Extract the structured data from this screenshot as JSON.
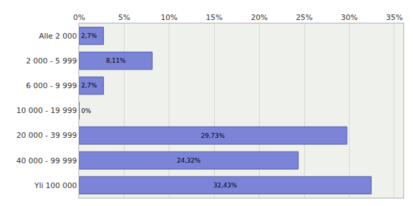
{
  "chart_data": {
    "type": "bar",
    "orientation": "horizontal",
    "categories": [
      "Alle 2 000",
      "2 000 - 5 999",
      "6 000 - 9 999",
      "10 000 - 19 999",
      "20 000 - 39 999",
      "40 000 - 99 999",
      "Yli 100 000"
    ],
    "values": [
      2.7,
      8.11,
      2.7,
      0,
      29.73,
      24.32,
      32.43
    ],
    "value_labels": [
      "2,7%",
      "8,11%",
      "2,7%",
      "0%",
      "29,73%",
      "24,32%",
      "32,43%"
    ],
    "data_labels": true,
    "color": "#7c84d8",
    "xlim": [
      0,
      36
    ],
    "xticks": [
      {
        "value": 0,
        "label": "0%"
      },
      {
        "value": 5,
        "label": "5%"
      },
      {
        "value": 10,
        "label": "10%"
      },
      {
        "value": 15,
        "label": "15%"
      },
      {
        "value": 20,
        "label": "20%"
      },
      {
        "value": 25,
        "label": "25%"
      },
      {
        "value": 30,
        "label": "30%"
      },
      {
        "value": 35,
        "label": "35%"
      }
    ],
    "grid": true
  }
}
